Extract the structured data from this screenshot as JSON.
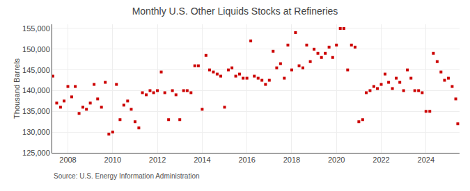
{
  "chart_data": {
    "type": "scatter",
    "title": "Monthly U.S. Other Liquids Stocks at Refineries",
    "ylabel": "Thousand Barrels",
    "annotations": [
      "Source: U.S. Energy Information Administration"
    ],
    "color": "#cc0000",
    "marker": "square",
    "grid": true,
    "xlim": [
      2007.3,
      2025.5
    ],
    "xticks": [
      2008,
      2010,
      2012,
      2014,
      2016,
      2018,
      2020,
      2022,
      2024
    ],
    "ylim": [
      125000,
      156000
    ],
    "yticks": [
      {
        "value": 125000,
        "label": "125,000"
      },
      {
        "value": 130000,
        "label": "130,000"
      },
      {
        "value": 135000,
        "label": "135,000"
      },
      {
        "value": 140000,
        "label": "140,000"
      },
      {
        "value": 145000,
        "label": "145,000"
      },
      {
        "value": 150000,
        "label": "150,000"
      },
      {
        "value": 155000,
        "label": "155,000"
      }
    ],
    "x": [
      2007.33,
      2007.5,
      2007.67,
      2007.83,
      2008.0,
      2008.17,
      2008.33,
      2008.5,
      2008.67,
      2008.83,
      2009.0,
      2009.17,
      2009.33,
      2009.5,
      2009.67,
      2009.83,
      2010.0,
      2010.17,
      2010.33,
      2010.5,
      2010.67,
      2010.83,
      2011.0,
      2011.17,
      2011.33,
      2011.5,
      2011.67,
      2011.83,
      2012.0,
      2012.17,
      2012.33,
      2012.5,
      2012.67,
      2012.83,
      2013.0,
      2013.17,
      2013.33,
      2013.5,
      2013.67,
      2013.83,
      2014.0,
      2014.17,
      2014.33,
      2014.5,
      2014.67,
      2014.83,
      2015.0,
      2015.17,
      2015.33,
      2015.5,
      2015.67,
      2015.83,
      2016.0,
      2016.17,
      2016.33,
      2016.5,
      2016.67,
      2016.83,
      2017.0,
      2017.17,
      2017.33,
      2017.5,
      2017.67,
      2017.83,
      2018.0,
      2018.17,
      2018.33,
      2018.5,
      2018.67,
      2018.83,
      2019.0,
      2019.17,
      2019.33,
      2019.5,
      2019.67,
      2019.83,
      2020.0,
      2020.17,
      2020.33,
      2020.5,
      2020.67,
      2020.83,
      2021.0,
      2021.17,
      2021.33,
      2021.5,
      2021.67,
      2021.83,
      2022.0,
      2022.17,
      2022.33,
      2022.5,
      2022.67,
      2022.83,
      2023.0,
      2023.17,
      2023.33,
      2023.5,
      2023.67,
      2023.83,
      2024.0,
      2024.17,
      2024.33,
      2024.5,
      2024.67,
      2024.83,
      2025.0,
      2025.17,
      2025.33,
      2025.42
    ],
    "values": [
      143500,
      137000,
      136000,
      137500,
      141000,
      138500,
      141000,
      134500,
      136000,
      135500,
      137000,
      141500,
      138000,
      136000,
      142000,
      129500,
      130000,
      141500,
      133000,
      136500,
      137500,
      135500,
      132500,
      131000,
      139500,
      139000,
      140000,
      139500,
      140000,
      144500,
      139500,
      133000,
      140000,
      139000,
      133000,
      140000,
      140000,
      139500,
      146000,
      146000,
      135500,
      148500,
      145000,
      144500,
      144000,
      143500,
      136000,
      145000,
      145500,
      143500,
      144000,
      143000,
      143000,
      152000,
      143500,
      143000,
      142500,
      141500,
      142500,
      149500,
      145500,
      146500,
      143000,
      151000,
      145000,
      154000,
      146000,
      145500,
      151000,
      147000,
      150000,
      149000,
      148000,
      149000,
      150500,
      148000,
      151000,
      155000,
      155000,
      145000,
      151000,
      150500,
      132500,
      133000,
      139500,
      140000,
      141000,
      140500,
      141500,
      144000,
      142000,
      140500,
      143000,
      142000,
      140000,
      145000,
      143000,
      140000,
      140000,
      139500,
      135000,
      135000,
      149000,
      147000,
      144500,
      142500,
      143000,
      141000,
      138000,
      132000
    ]
  }
}
